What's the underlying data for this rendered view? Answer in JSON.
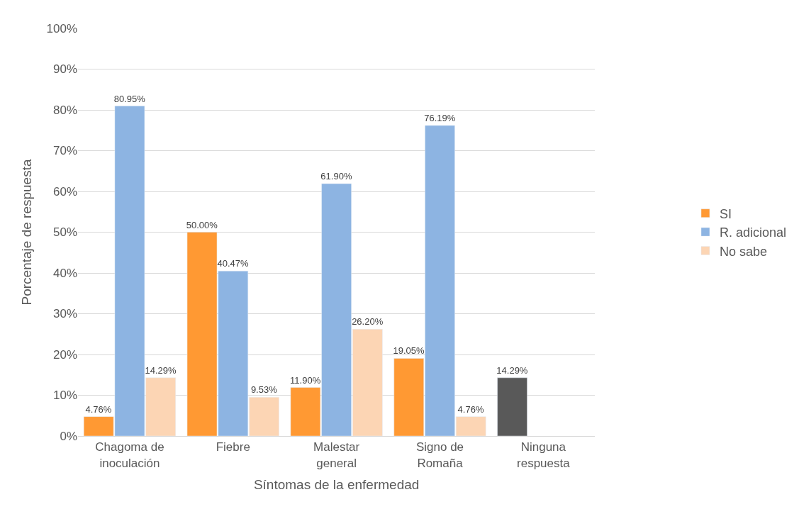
{
  "chart_data": {
    "type": "bar",
    "xlabel": "Síntomas de la enfermedad",
    "ylabel": "Porcentaje de respuesta",
    "categories": [
      "Chagoma de\ninoculación",
      "Fiebre",
      "Malestar\ngeneral",
      "Signo de\nRomaña",
      "Ninguna\nrespuesta"
    ],
    "series": [
      {
        "name": "SI",
        "color": "#ff9933",
        "colors": [
          "#ff9933",
          "#ff9933",
          "#ff9933",
          "#ff9933",
          "#595959"
        ],
        "values": [
          4.76,
          50.0,
          11.9,
          19.05,
          14.29
        ],
        "value_labels": [
          "4.76%",
          "50.00%",
          "11.90%",
          "19.05%",
          "14.29%"
        ]
      },
      {
        "name": "R. adicional",
        "color": "#8db4e2",
        "values": [
          80.95,
          40.47,
          61.9,
          76.19,
          null
        ],
        "value_labels": [
          "80.95%",
          "40.47%",
          "61.90%",
          "76.19%",
          null
        ]
      },
      {
        "name": "No sabe",
        "color": "#fcd5b4",
        "values": [
          14.29,
          9.53,
          26.2,
          4.76,
          null
        ],
        "value_labels": [
          "14.29%",
          "9.53%",
          "26.20%",
          "4.76%",
          null
        ]
      }
    ],
    "ylim": [
      0,
      100
    ],
    "yticks": [
      {
        "value": 0,
        "label": "0%"
      },
      {
        "value": 10,
        "label": "10%"
      },
      {
        "value": 20,
        "label": "20%"
      },
      {
        "value": 30,
        "label": "30%"
      },
      {
        "value": 40,
        "label": "40%"
      },
      {
        "value": 50,
        "label": "50%"
      },
      {
        "value": 60,
        "label": "60%"
      },
      {
        "value": 70,
        "label": "70%"
      },
      {
        "value": 80,
        "label": "80%"
      },
      {
        "value": 90,
        "label": "90%"
      },
      {
        "value": 100,
        "label": "100%"
      }
    ],
    "grid": "y",
    "legend": "right"
  }
}
